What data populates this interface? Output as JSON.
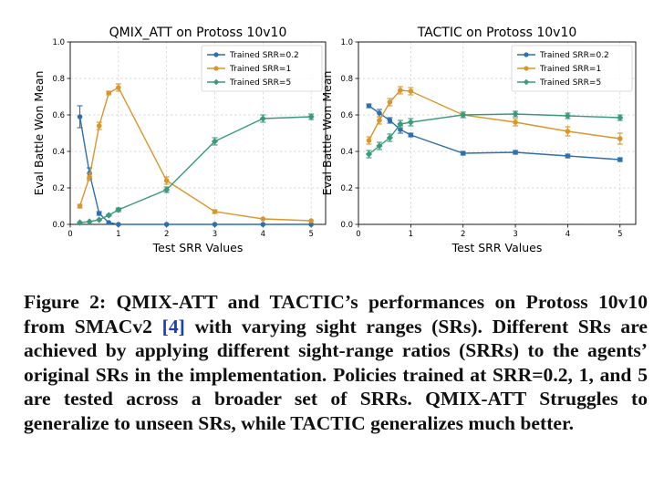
{
  "chart_data": [
    {
      "type": "line",
      "title": "QMIX_ATT on Protoss 10v10",
      "xlabel": "Test SRR Values",
      "ylabel": "Eval Battle Won Mean",
      "xlim": [
        0,
        5.3
      ],
      "ylim": [
        0,
        1.0
      ],
      "xticks": [
        0,
        1,
        2,
        3,
        4,
        5
      ],
      "yticks": [
        0.0,
        0.2,
        0.4,
        0.6,
        0.8,
        1.0
      ],
      "grid": true,
      "legend_position": "top-right",
      "x": [
        0.2,
        0.4,
        0.6,
        0.8,
        1,
        2,
        3,
        4,
        5
      ],
      "series": [
        {
          "name": "Trained SRR=0.2",
          "color": "#2e6fad",
          "marker": "circle",
          "values": [
            0.59,
            0.28,
            0.06,
            0.01,
            0.0,
            0.0,
            0.0,
            0.0,
            0.0
          ],
          "errors": [
            0.06,
            0.03,
            0.01,
            0.0,
            0.0,
            0.0,
            0.0,
            0.0,
            0.0
          ]
        },
        {
          "name": "Trained SRR=1",
          "color": "#d9962b",
          "marker": "circle",
          "values": [
            0.1,
            0.26,
            0.54,
            0.72,
            0.75,
            0.24,
            0.07,
            0.03,
            0.02
          ],
          "errors": [
            0.01,
            0.02,
            0.02,
            0.01,
            0.02,
            0.02,
            0.01,
            0.0,
            0.0
          ]
        },
        {
          "name": "Trained SRR=5",
          "color": "#3a9a7a",
          "marker": "diamond",
          "values": [
            0.01,
            0.015,
            0.025,
            0.05,
            0.08,
            0.19,
            0.455,
            0.58,
            0.59
          ],
          "errors": [
            0.0,
            0.0,
            0.0,
            0.005,
            0.01,
            0.015,
            0.02,
            0.02,
            0.015
          ]
        }
      ]
    },
    {
      "type": "line",
      "title": "TACTIC on Protoss 10v10",
      "xlabel": "Test SRR Values",
      "ylabel": "Eval Battle Won Mean",
      "xlim": [
        0,
        5.3
      ],
      "ylim": [
        0,
        1.0
      ],
      "xticks": [
        0,
        1,
        2,
        3,
        4,
        5
      ],
      "yticks": [
        0.0,
        0.2,
        0.4,
        0.6,
        0.8,
        1.0
      ],
      "grid": true,
      "legend_position": "top-right",
      "x": [
        0.2,
        0.4,
        0.6,
        0.8,
        1,
        2,
        3,
        4,
        5
      ],
      "series": [
        {
          "name": "Trained SRR=0.2",
          "color": "#2e6fad",
          "marker": "circle",
          "values": [
            0.65,
            0.61,
            0.57,
            0.52,
            0.49,
            0.39,
            0.395,
            0.375,
            0.355
          ],
          "errors": [
            0.01,
            0.02,
            0.015,
            0.02,
            0.01,
            0.01,
            0.01,
            0.01,
            0.01
          ]
        },
        {
          "name": "Trained SRR=1",
          "color": "#d9962b",
          "marker": "circle",
          "values": [
            0.46,
            0.57,
            0.67,
            0.735,
            0.73,
            0.6,
            0.56,
            0.51,
            0.47
          ],
          "errors": [
            0.02,
            0.02,
            0.02,
            0.02,
            0.02,
            0.015,
            0.02,
            0.025,
            0.03
          ]
        },
        {
          "name": "Trained SRR=5",
          "color": "#3a9a7a",
          "marker": "diamond",
          "values": [
            0.385,
            0.43,
            0.475,
            0.55,
            0.56,
            0.6,
            0.605,
            0.595,
            0.585
          ],
          "errors": [
            0.02,
            0.02,
            0.02,
            0.02,
            0.02,
            0.015,
            0.015,
            0.015,
            0.015
          ]
        }
      ]
    }
  ],
  "caption": {
    "prefix": "Figure 2: QMIX-ATT and TACTIC’s performances on Protoss 10v10 from SMACv2 ",
    "ref": "[4]",
    "suffix": " with varying sight ranges (SRs). Different SRs are achieved by applying different sight-range ratios (SRRs) to the agents’ original SRs in the implementation. Policies trained at SRR=0.2, 1, and 5 are tested across a broader set of SRRs. QMIX-ATT Struggles to generalize to unseen SRs, while TACTIC generalizes much better."
  }
}
